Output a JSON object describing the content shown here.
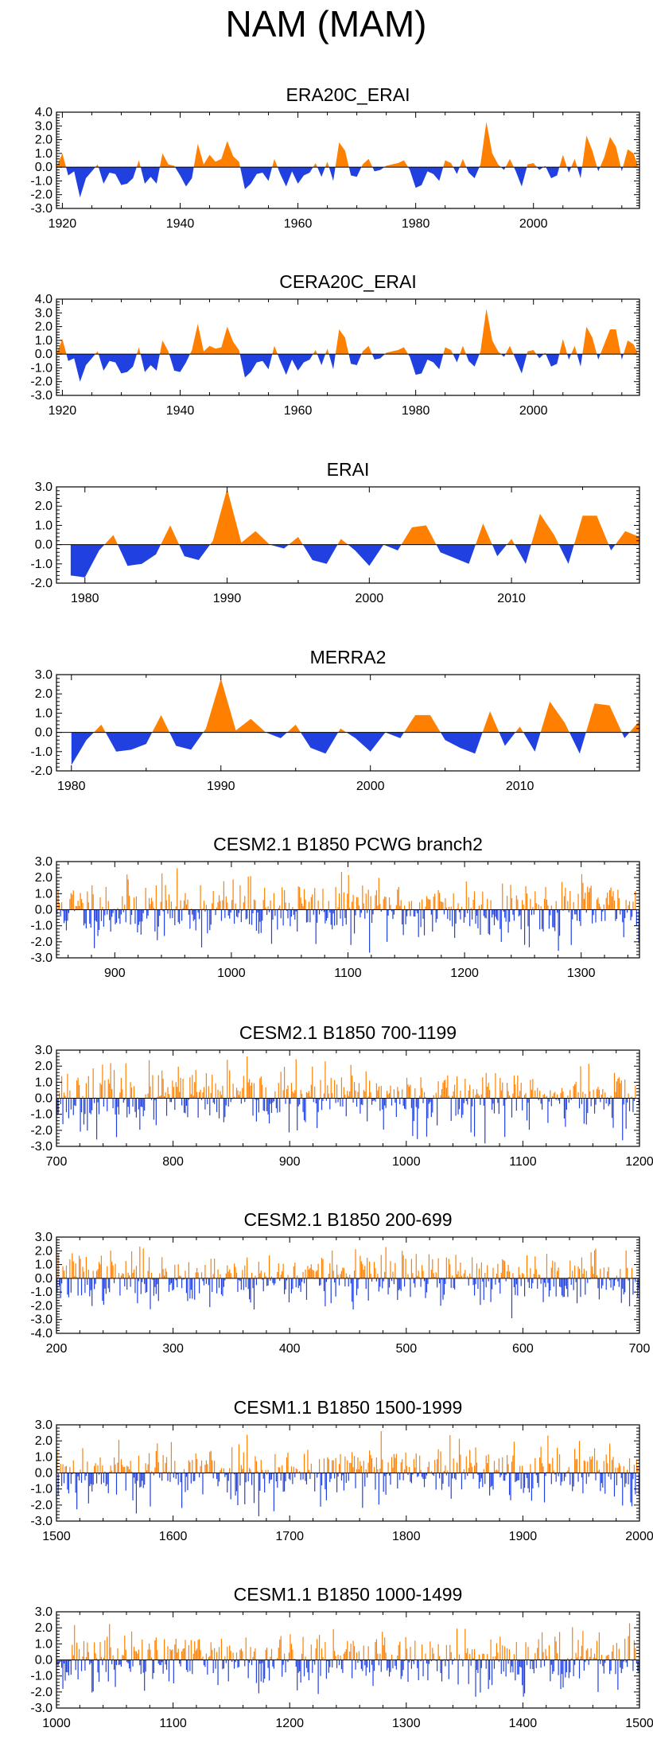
{
  "figure_title": "NAM (MAM)",
  "colors": {
    "positive": "#ff8000",
    "negative": "#2040e0",
    "axis": "#000000"
  },
  "chart_data": [
    {
      "type": "area",
      "title": "ERA20C_ERAI",
      "xlim": [
        1919,
        2018
      ],
      "ylim": [
        -3,
        4
      ],
      "yticks": [
        "4.0",
        "3.0",
        "2.0",
        "1.0",
        "0.0",
        "-1.0",
        "-2.0",
        "-3.0"
      ],
      "xticks": [
        "1920",
        "1940",
        "1960",
        "1980",
        "2000"
      ],
      "x_start": 1919,
      "values": [
        0.0,
        1.0,
        -0.6,
        -0.3,
        -2.2,
        -0.8,
        -0.3,
        0.2,
        -1.2,
        -0.4,
        -0.5,
        -1.3,
        -1.2,
        -0.8,
        0.5,
        -1.2,
        -0.7,
        -1.2,
        1.0,
        0.2,
        0.1,
        -0.6,
        -1.4,
        -0.8,
        1.7,
        0.2,
        0.9,
        0.4,
        0.6,
        1.9,
        0.8,
        0.4,
        -1.6,
        -1.2,
        -0.5,
        -0.4,
        -1.0,
        0.6,
        -0.5,
        -1.4,
        -0.3,
        -1.2,
        -0.6,
        -0.4,
        0.3,
        -0.7,
        0.4,
        -1.0,
        1.8,
        1.2,
        -0.6,
        -0.7,
        0.2,
        0.6,
        -0.3,
        -0.2,
        0.1,
        0.2,
        0.3,
        0.5,
        -0.2,
        -1.5,
        -1.3,
        -0.3,
        -0.5,
        -1.0,
        0.5,
        0.3,
        -0.5,
        0.6,
        -0.4,
        -0.8,
        0.2,
        3.3,
        1.0,
        0.2,
        -0.2,
        0.6,
        -0.3,
        -1.4,
        0.2,
        0.3,
        -0.2,
        0.1,
        -0.8,
        -0.6,
        0.9,
        -0.4,
        0.6,
        -0.8,
        2.3,
        1.2,
        -0.3,
        0.7,
        2.2,
        1.5,
        -0.3,
        1.3,
        1.0,
        -0.2
      ]
    },
    {
      "type": "area",
      "title": "CERA20C_ERAI",
      "xlim": [
        1919,
        2018
      ],
      "ylim": [
        -3,
        4
      ],
      "yticks": [
        "4.0",
        "3.0",
        "2.0",
        "1.0",
        "0.0",
        "-1.0",
        "-2.0",
        "-3.0"
      ],
      "xticks": [
        "1920",
        "1940",
        "1960",
        "1980",
        "2000"
      ],
      "x_start": 1919,
      "values": [
        0.0,
        1.1,
        -0.5,
        -0.3,
        -2.0,
        -0.8,
        -0.3,
        0.2,
        -1.2,
        -0.5,
        -0.6,
        -1.4,
        -1.3,
        -0.9,
        0.5,
        -1.3,
        -0.8,
        -1.2,
        1.0,
        0.2,
        -1.2,
        -1.3,
        -0.6,
        0.3,
        2.2,
        0.2,
        0.6,
        0.4,
        0.5,
        2.0,
        0.9,
        0.3,
        -1.7,
        -1.3,
        -0.6,
        -0.5,
        -1.1,
        0.6,
        -0.5,
        -1.5,
        -0.4,
        -1.2,
        -0.6,
        -0.4,
        0.3,
        -0.8,
        0.4,
        -1.1,
        1.8,
        1.2,
        -0.7,
        -0.8,
        0.2,
        0.6,
        -0.4,
        -0.3,
        0.1,
        0.2,
        0.3,
        0.5,
        -0.2,
        -1.5,
        -1.4,
        -0.4,
        -0.6,
        -1.1,
        0.5,
        0.3,
        -0.6,
        0.6,
        -0.5,
        -0.9,
        0.2,
        3.3,
        1.0,
        0.2,
        -0.2,
        0.6,
        -0.4,
        -1.4,
        0.2,
        0.3,
        -0.3,
        0.1,
        -0.9,
        -0.7,
        1.1,
        -0.4,
        0.6,
        -0.9,
        2.0,
        1.2,
        -0.4,
        0.7,
        1.8,
        1.8,
        -0.4,
        1.0,
        0.7,
        -0.2
      ]
    },
    {
      "type": "area",
      "title": "ERAI",
      "xlim": [
        1978,
        2019
      ],
      "ylim": [
        -2,
        3
      ],
      "yticks": [
        "3.0",
        "2.0",
        "1.0",
        "0.0",
        "-1.0",
        "-2.0"
      ],
      "xticks": [
        "1980",
        "1990",
        "2000",
        "2010"
      ],
      "x_start": 1979,
      "values": [
        -1.6,
        -1.7,
        -0.3,
        0.5,
        -1.1,
        -1.0,
        -0.5,
        1.0,
        -0.6,
        -0.8,
        0.2,
        2.9,
        0.1,
        0.7,
        0.0,
        -0.2,
        0.4,
        -0.8,
        -1.0,
        0.3,
        -0.3,
        -1.1,
        0.0,
        -0.3,
        0.9,
        1.0,
        -0.4,
        -0.7,
        -1.0,
        1.1,
        -0.6,
        0.3,
        -1.0,
        1.6,
        0.5,
        -1.0,
        1.5,
        1.5,
        -0.3,
        0.7,
        0.4
      ]
    },
    {
      "type": "area",
      "title": "MERRA2",
      "xlim": [
        1979,
        2018
      ],
      "ylim": [
        -2,
        3
      ],
      "yticks": [
        "3.0",
        "2.0",
        "1.0",
        "0.0",
        "-1.0",
        "-2.0"
      ],
      "xticks": [
        "1980",
        "1990",
        "2000",
        "2010"
      ],
      "x_start": 1980,
      "values": [
        -1.7,
        -0.4,
        0.4,
        -1.0,
        -0.9,
        -0.6,
        0.9,
        -0.7,
        -0.9,
        0.2,
        2.8,
        0.1,
        0.7,
        0.0,
        -0.3,
        0.4,
        -0.8,
        -1.1,
        0.2,
        -0.3,
        -1.0,
        0.0,
        -0.3,
        0.9,
        0.9,
        -0.4,
        -0.8,
        -1.1,
        1.1,
        -0.7,
        0.3,
        -1.0,
        1.6,
        0.5,
        -1.1,
        1.5,
        1.4,
        -0.3,
        0.6
      ]
    },
    {
      "type": "bar",
      "title": "CESM2.1 B1850 PCWG branch2",
      "xlim": [
        850,
        1350
      ],
      "ylim": [
        -3,
        3
      ],
      "yticks": [
        "3.0",
        "2.0",
        "1.0",
        "0.0",
        "-1.0",
        "-2.0",
        "-3.0"
      ],
      "xticks": [
        "900",
        "1000",
        "1100",
        "1200",
        "1300"
      ],
      "x_start": 850,
      "n_years": 500,
      "seed": 11
    },
    {
      "type": "bar",
      "title": "CESM2.1 B1850 700-1199",
      "xlim": [
        700,
        1200
      ],
      "ylim": [
        -3,
        3
      ],
      "yticks": [
        "3.0",
        "2.0",
        "1.0",
        "0.0",
        "-1.0",
        "-2.0",
        "-3.0"
      ],
      "xticks": [
        "700",
        "800",
        "900",
        "1000",
        "1100",
        "1200"
      ],
      "x_start": 700,
      "n_years": 500,
      "seed": 23
    },
    {
      "type": "bar",
      "title": "CESM2.1 B1850 200-699",
      "xlim": [
        200,
        700
      ],
      "ylim": [
        -4,
        3
      ],
      "yticks": [
        "3.0",
        "2.0",
        "1.0",
        "0.0",
        "-1.0",
        "-2.0",
        "-3.0",
        "-4.0"
      ],
      "xticks": [
        "200",
        "300",
        "400",
        "500",
        "600",
        "700"
      ],
      "x_start": 200,
      "n_years": 500,
      "seed": 37
    },
    {
      "type": "bar",
      "title": "CESM1.1 B1850 1500-1999",
      "xlim": [
        1500,
        2000
      ],
      "ylim": [
        -3,
        3
      ],
      "yticks": [
        "3.0",
        "2.0",
        "1.0",
        "0.0",
        "-1.0",
        "-2.0",
        "-3.0"
      ],
      "xticks": [
        "1500",
        "1600",
        "1700",
        "1800",
        "1900",
        "2000"
      ],
      "x_start": 1500,
      "n_years": 500,
      "seed": 53
    },
    {
      "type": "bar",
      "title": "CESM1.1 B1850 1000-1499",
      "xlim": [
        1000,
        1500
      ],
      "ylim": [
        -3,
        3
      ],
      "yticks": [
        "3.0",
        "2.0",
        "1.0",
        "0.0",
        "-1.0",
        "-2.0",
        "-3.0"
      ],
      "xticks": [
        "1000",
        "1100",
        "1200",
        "1300",
        "1400",
        "1500"
      ],
      "x_start": 1000,
      "n_years": 500,
      "seed": 71
    }
  ]
}
